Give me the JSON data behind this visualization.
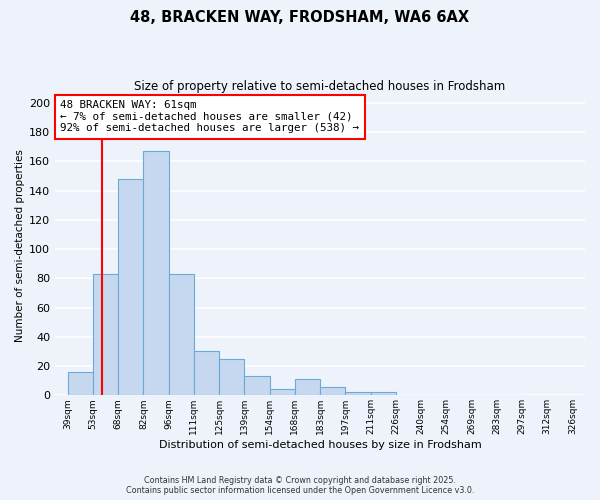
{
  "title": "48, BRACKEN WAY, FRODSHAM, WA6 6AX",
  "subtitle": "Size of property relative to semi-detached houses in Frodsham",
  "xlabel": "Distribution of semi-detached houses by size in Frodsham",
  "ylabel": "Number of semi-detached properties",
  "bar_values": [
    16,
    83,
    148,
    167,
    83,
    30,
    25,
    13,
    4,
    11,
    6,
    2,
    2,
    0,
    0,
    0,
    0,
    0
  ],
  "bin_labels": [
    "39sqm",
    "53sqm",
    "68sqm",
    "82sqm",
    "96sqm",
    "111sqm",
    "125sqm",
    "139sqm",
    "154sqm",
    "168sqm",
    "183sqm",
    "197sqm",
    "211sqm",
    "226sqm",
    "240sqm",
    "254sqm",
    "269sqm",
    "283sqm",
    "297sqm",
    "312sqm",
    "326sqm"
  ],
  "bar_color": "#c5d8f0",
  "bar_edge_color": "#6aaad4",
  "vline_color": "red",
  "vline_x": 1.35,
  "annotation_title": "48 BRACKEN WAY: 61sqm",
  "annotation_line1": "← 7% of semi-detached houses are smaller (42)",
  "annotation_line2": "92% of semi-detached houses are larger (538) →",
  "annotation_box_edge": "red",
  "ylim": [
    0,
    205
  ],
  "yticks": [
    0,
    20,
    40,
    60,
    80,
    100,
    120,
    140,
    160,
    180,
    200
  ],
  "background_color": "#eef2fb",
  "grid_color": "#ffffff",
  "footer_line1": "Contains HM Land Registry data © Crown copyright and database right 2025.",
  "footer_line2": "Contains public sector information licensed under the Open Government Licence v3.0."
}
